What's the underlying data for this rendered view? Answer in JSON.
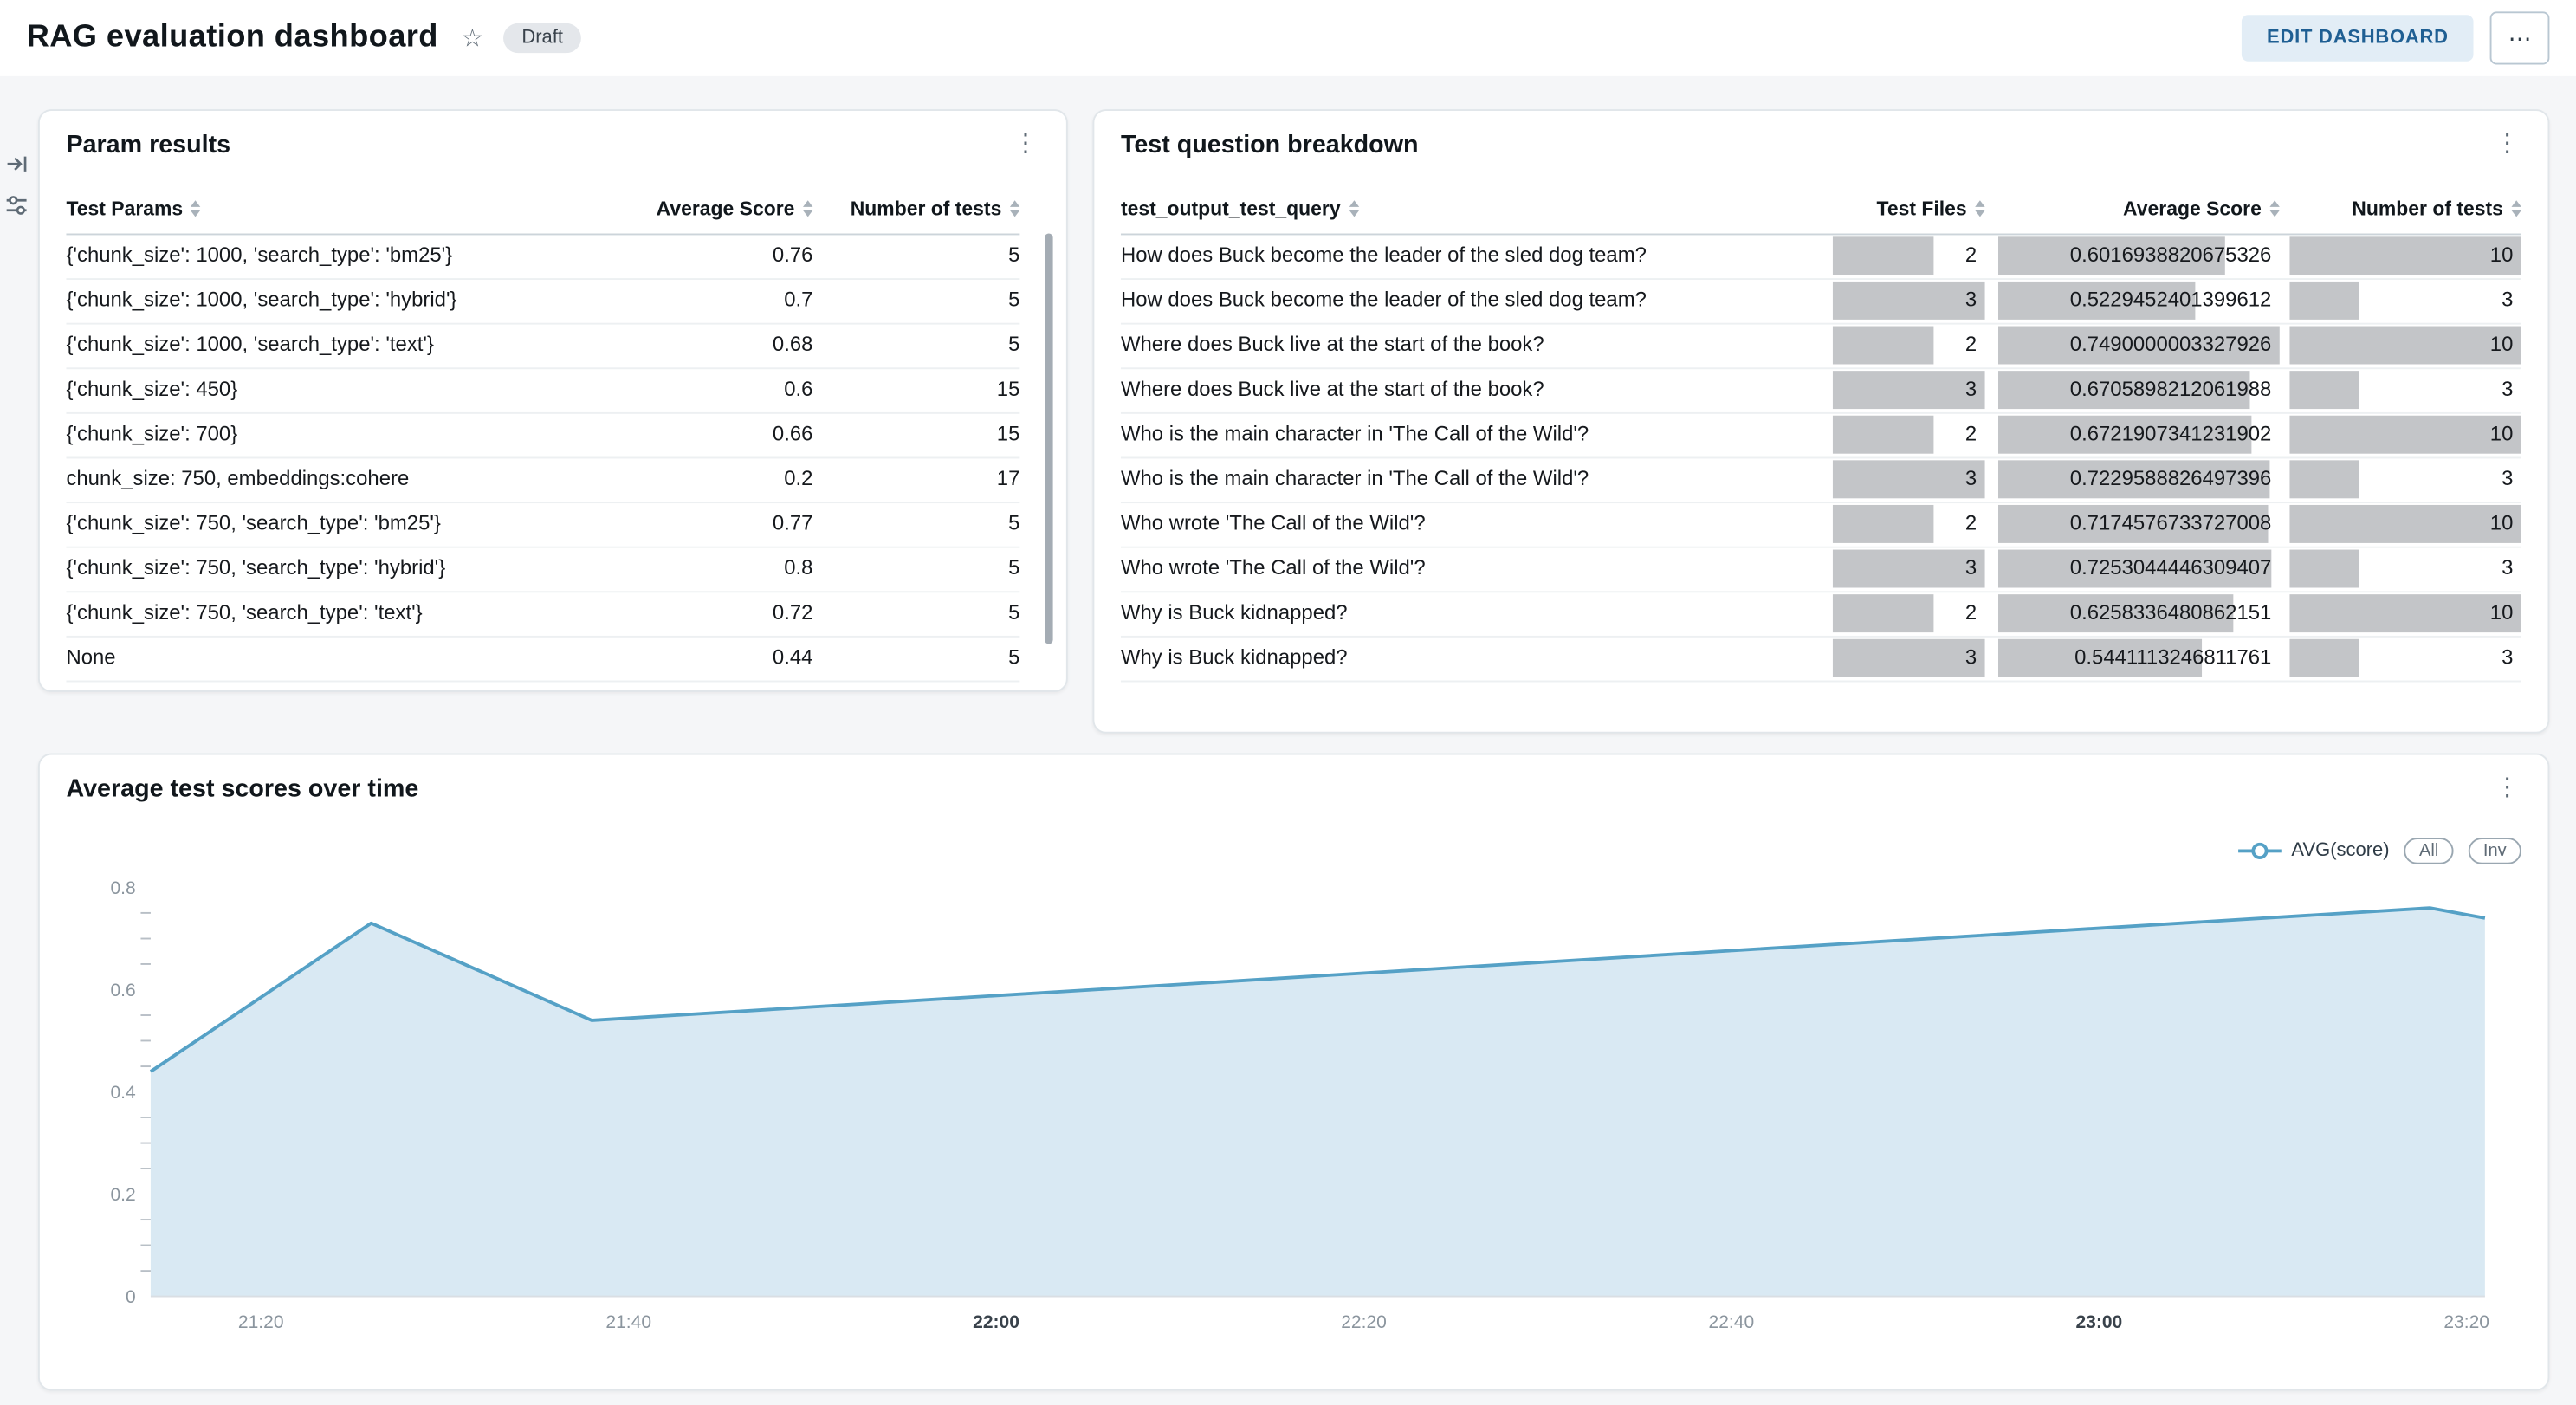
{
  "icons": {
    "kebab": "⋮",
    "star": "☆",
    "more": "⋯"
  },
  "header": {
    "title": "RAG evaluation dashboard",
    "status_badge": "Draft",
    "edit_button": "EDIT DASHBOARD"
  },
  "panels": {
    "param_results": {
      "title": "Param results",
      "columns": [
        "Test Params",
        "Average Score",
        "Number of tests"
      ],
      "rows": [
        [
          "{'chunk_size': 1000, 'search_type': 'bm25'}",
          "0.76",
          "5"
        ],
        [
          "{'chunk_size': 1000, 'search_type': 'hybrid'}",
          "0.7",
          "5"
        ],
        [
          "{'chunk_size': 1000, 'search_type': 'text'}",
          "0.68",
          "5"
        ],
        [
          "{'chunk_size': 450}",
          "0.6",
          "15"
        ],
        [
          "{'chunk_size': 700}",
          "0.66",
          "15"
        ],
        [
          "chunk_size: 750, embeddings:cohere",
          "0.2",
          "17"
        ],
        [
          "{'chunk_size': 750, 'search_type': 'bm25'}",
          "0.77",
          "5"
        ],
        [
          "{'chunk_size': 750, 'search_type': 'hybrid'}",
          "0.8",
          "5"
        ],
        [
          "{'chunk_size': 750, 'search_type': 'text'}",
          "0.72",
          "5"
        ],
        [
          "None",
          "0.44",
          "5"
        ]
      ]
    },
    "question_breakdown": {
      "title": "Test question breakdown",
      "columns": [
        "test_output_test_query",
        "Test Files",
        "Average Score",
        "Number of tests"
      ],
      "bar_max": {
        "test_files": 3,
        "avg_score": 0.7490000003327926,
        "num_tests": 10
      },
      "rows": [
        {
          "query": "How does Buck become the leader of the sled dog team?",
          "test_files": "2",
          "avg_score": "0.6016938820675326",
          "num_tests": "10"
        },
        {
          "query": "How does Buck become the leader of the sled dog team?",
          "test_files": "3",
          "avg_score": "0.5229452401399612",
          "num_tests": "3"
        },
        {
          "query": "Where does Buck live at the start of the book?",
          "test_files": "2",
          "avg_score": "0.7490000003327926",
          "num_tests": "10"
        },
        {
          "query": "Where does Buck live at the start of the book?",
          "test_files": "3",
          "avg_score": "0.6705898212061988",
          "num_tests": "3"
        },
        {
          "query": "Who is the main character in 'The Call of the Wild'?",
          "test_files": "2",
          "avg_score": "0.6721907341231902",
          "num_tests": "10"
        },
        {
          "query": "Who is the main character in 'The Call of the Wild'?",
          "test_files": "3",
          "avg_score": "0.7229588826497396",
          "num_tests": "3"
        },
        {
          "query": "Who wrote 'The Call of the Wild'?",
          "test_files": "2",
          "avg_score": "0.7174576733727008",
          "num_tests": "10"
        },
        {
          "query": "Who wrote 'The Call of the Wild'?",
          "test_files": "3",
          "avg_score": "0.7253044446309407",
          "num_tests": "3"
        },
        {
          "query": "Why is Buck kidnapped?",
          "test_files": "2",
          "avg_score": "0.6258336480862151",
          "num_tests": "10"
        },
        {
          "query": "Why is Buck kidnapped?",
          "test_files": "3",
          "avg_score": "0.5441113246811761",
          "num_tests": "3"
        }
      ]
    },
    "scores_chart": {
      "title": "Average test scores over time",
      "legend_label": "AVG(score)",
      "button_all": "All",
      "button_inv": "Inv"
    }
  },
  "chart_data": {
    "type": "area",
    "title": "Average test scores over time",
    "series": [
      {
        "name": "AVG(score)",
        "x": [
          "21:14",
          "21:26",
          "21:38",
          "23:18",
          "23:21"
        ],
        "y": [
          0.44,
          0.73,
          0.54,
          0.76,
          0.74
        ]
      }
    ],
    "x_range": [
      "21:14",
      "23:21"
    ],
    "x_ticks": [
      "21:20",
      "21:40",
      "22:00",
      "22:20",
      "22:40",
      "23:00",
      "23:20"
    ],
    "x_ticks_bold": [
      "22:00",
      "23:00"
    ],
    "ylim": [
      0,
      0.8
    ],
    "y_ticks": [
      0,
      0.2,
      0.4,
      0.6,
      0.8
    ],
    "y_minor_step": 0.05,
    "xlabel": "",
    "ylabel": "",
    "grid": false,
    "legend_position": "top-right",
    "line_color": "#55a1c6",
    "fill_color": "#d9e9f3"
  }
}
